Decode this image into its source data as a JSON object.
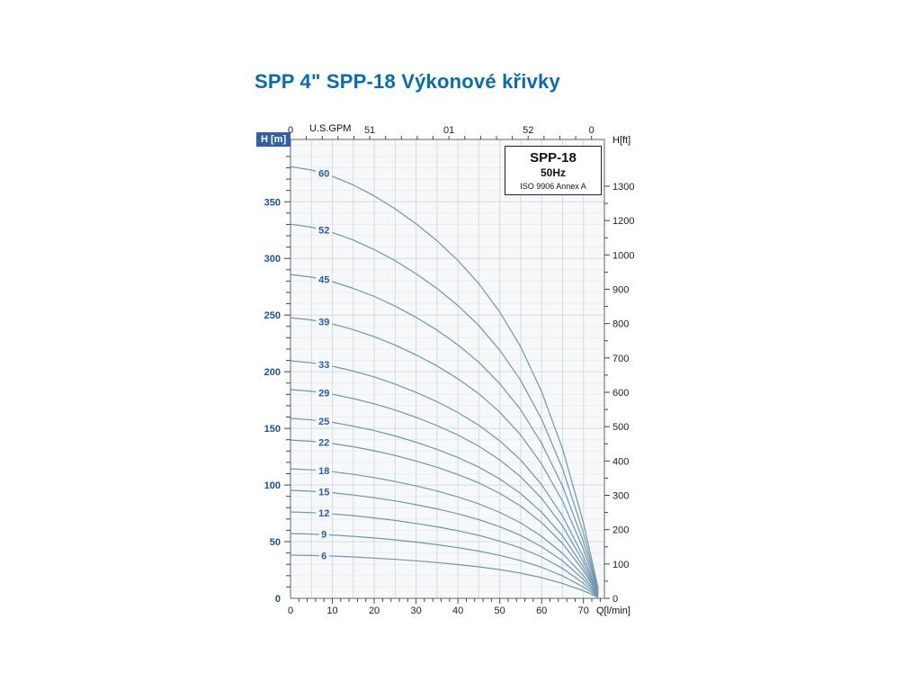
{
  "page": {
    "title": "SPP 4\" SPP-18 Výkonové křivky"
  },
  "legend": {
    "model": "SPP-18",
    "frequency": "50Hz",
    "standard": "ISO 9906 Annex A"
  },
  "axes_labels": {
    "left_unit": "H [m]",
    "right_unit": "H[ft]",
    "top_unit": "U.S.GPM",
    "bottom_unit": "Q[l/min]"
  },
  "chart_data": {
    "type": "line",
    "title": "SPP-18 50Hz pump performance curves (head vs flow, per stage count)",
    "xlabel": "Q[l/min]",
    "ylabel": "H [m]",
    "ylabel_right": "H[ft]",
    "x_secondary_label": "U.S.GPM",
    "xlim": [
      0,
      75
    ],
    "ylim": [
      0,
      405
    ],
    "grid": true,
    "legend_position": "top-right",
    "x_ticks": [
      0,
      10,
      20,
      30,
      40,
      50,
      60,
      70
    ],
    "y_ticks": [
      0,
      50,
      100,
      150,
      200,
      250,
      300,
      350
    ],
    "right_axis_labels_bottom_to_top": [
      "0",
      "100",
      "200",
      "300",
      "400",
      "500",
      "600",
      "700",
      "800",
      "900",
      "1000",
      "1200",
      "1300"
    ],
    "top_axis_ticks": [
      {
        "label": "0",
        "gpm": 0
      },
      {
        "label": "51",
        "gpm": 5
      },
      {
        "label": "01",
        "gpm": 10
      },
      {
        "label": "52",
        "gpm": 15
      },
      {
        "label": "0",
        "gpm": 19
      }
    ],
    "q_lmin": [
      0,
      5,
      10,
      15,
      20,
      25,
      30,
      35,
      40,
      45,
      50,
      55,
      60,
      65,
      70,
      73.5
    ],
    "series": [
      {
        "name": "60",
        "stages": 60,
        "h_m": [
          381,
          378,
          372.6,
          364.8,
          355.2,
          343.8,
          330.6,
          315.6,
          298.2,
          277.8,
          252.6,
          222,
          182.4,
          132,
          66.6,
          9
        ]
      },
      {
        "name": "52",
        "stages": 52,
        "h_m": [
          330.2,
          327.6,
          322.9,
          316.2,
          307.8,
          298,
          286.5,
          273.5,
          258.4,
          240.8,
          218.9,
          192.4,
          158.1,
          114.4,
          57.7,
          7.8
        ]
      },
      {
        "name": "45",
        "stages": 45,
        "h_m": [
          285.8,
          283.5,
          279.5,
          273.6,
          266.4,
          257.9,
          248,
          236.7,
          223.7,
          208.4,
          189.5,
          166.5,
          136.8,
          99,
          50,
          6.8
        ]
      },
      {
        "name": "39",
        "stages": 39,
        "h_m": [
          247.7,
          245.7,
          242.2,
          237.1,
          230.9,
          223.5,
          214.9,
          205.1,
          193.8,
          180.6,
          164.2,
          144.3,
          118.6,
          85.8,
          43.3,
          5.9
        ]
      },
      {
        "name": "33",
        "stages": 33,
        "h_m": [
          209.6,
          207.9,
          204.9,
          200.6,
          195.4,
          189.1,
          181.8,
          173.6,
          164,
          152.8,
          139,
          122.1,
          100.3,
          72.6,
          36.6,
          5
        ]
      },
      {
        "name": "29",
        "stages": 29,
        "h_m": [
          184.2,
          182.7,
          180.1,
          176.3,
          171.7,
          166.2,
          159.8,
          152.5,
          144.1,
          134.3,
          122.1,
          107.3,
          88.2,
          63.8,
          32.2,
          4.4
        ]
      },
      {
        "name": "25",
        "stages": 25,
        "h_m": [
          158.8,
          157.5,
          155.3,
          152,
          148,
          143.3,
          137.8,
          131.5,
          124.3,
          115.8,
          105.3,
          92.5,
          76,
          55,
          27.8,
          3.8
        ]
      },
      {
        "name": "22",
        "stages": 22,
        "h_m": [
          139.7,
          138.6,
          136.6,
          133.8,
          130.2,
          126.1,
          121.2,
          115.7,
          109.3,
          101.9,
          92.6,
          81.4,
          66.9,
          48.4,
          24.4,
          3.3
        ]
      },
      {
        "name": "18",
        "stages": 18,
        "h_m": [
          114.3,
          113.4,
          111.8,
          109.4,
          106.6,
          103.1,
          99.2,
          94.7,
          89.5,
          83.3,
          75.8,
          66.6,
          54.7,
          39.6,
          20,
          2.7
        ]
      },
      {
        "name": "15",
        "stages": 15,
        "h_m": [
          95.3,
          94.5,
          93.2,
          91.2,
          88.8,
          86,
          82.7,
          78.9,
          74.6,
          69.5,
          63.2,
          55.5,
          45.6,
          33,
          16.7,
          2.3
        ]
      },
      {
        "name": "12",
        "stages": 12,
        "h_m": [
          76.2,
          75.6,
          74.5,
          73,
          71,
          68.8,
          66.1,
          63.1,
          59.6,
          55.6,
          50.5,
          44.4,
          36.5,
          26.4,
          13.3,
          1.8
        ]
      },
      {
        "name": "9",
        "stages": 9,
        "h_m": [
          57.2,
          56.7,
          55.9,
          54.7,
          53.3,
          51.6,
          49.6,
          47.3,
          44.7,
          41.7,
          37.9,
          33.3,
          27.4,
          19.8,
          10,
          1.4
        ]
      },
      {
        "name": "6",
        "stages": 6,
        "h_m": [
          38.1,
          37.8,
          37.3,
          36.5,
          35.5,
          34.4,
          33.1,
          31.6,
          29.8,
          27.8,
          25.3,
          22.2,
          18.2,
          13.2,
          6.7,
          0.9
        ]
      }
    ],
    "colors": {
      "curve": "#7097a8",
      "curve_label": "#2a5caa",
      "left_tick": "#1d4fa0",
      "tick_text": "#222222",
      "grid_major": "#d3dce2",
      "grid_minor": "#e9eef2",
      "plot_bg": "#f6f8f9",
      "axis": "#666666",
      "tick": "#444444",
      "title_blue": "#0a6bb5"
    }
  }
}
